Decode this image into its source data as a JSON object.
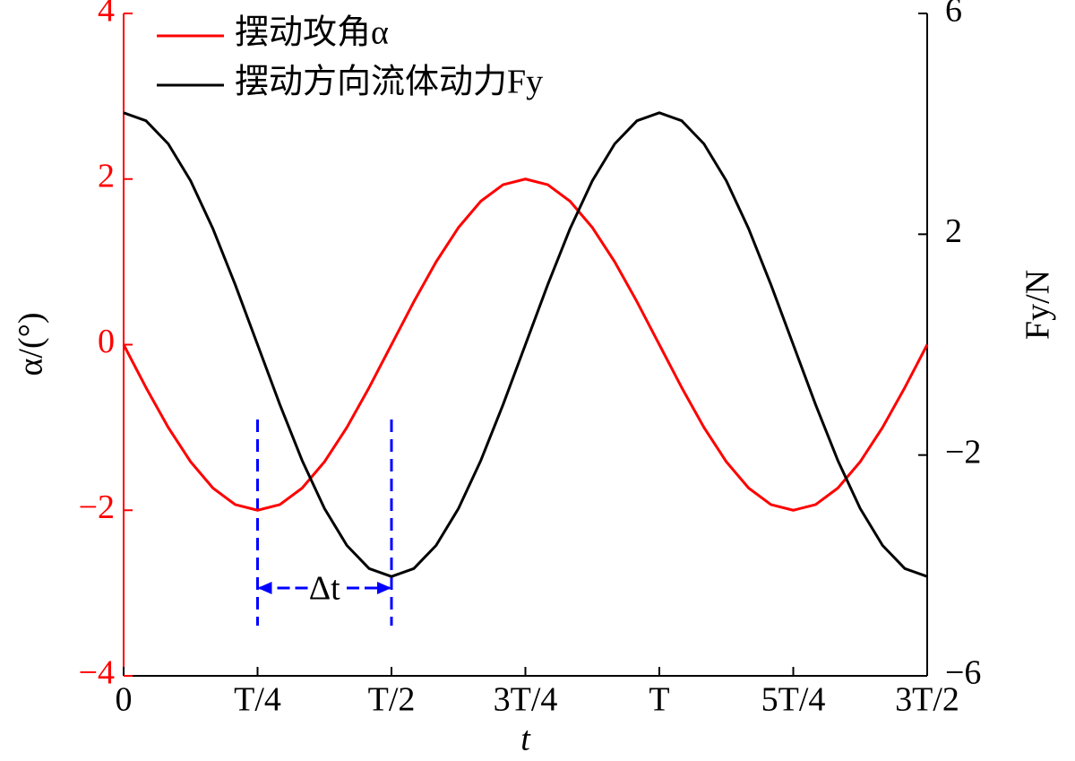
{
  "chart_data": {
    "type": "line",
    "x": [
      0,
      0.0417,
      0.0833,
      0.125,
      0.1667,
      0.2083,
      0.25,
      0.2917,
      0.3333,
      0.375,
      0.4167,
      0.4583,
      0.5,
      0.5417,
      0.5833,
      0.625,
      0.6667,
      0.7083,
      0.75,
      0.7917,
      0.8333,
      0.875,
      0.9167,
      0.9583,
      1,
      1.0417,
      1.0833,
      1.125,
      1.1667,
      1.2083,
      1.25,
      1.2917,
      1.3333,
      1.375,
      1.4167,
      1.4583,
      1.5
    ],
    "series": [
      {
        "name": "摆动攻角α",
        "color": "#ff0000",
        "axis": "y",
        "values": [
          0,
          -0.518,
          -1,
          -1.414,
          -1.732,
          -1.932,
          -2,
          -1.932,
          -1.732,
          -1.414,
          -1,
          -0.518,
          0,
          0.518,
          1,
          1.414,
          1.732,
          1.932,
          2,
          1.932,
          1.732,
          1.414,
          1,
          0.518,
          0,
          -0.518,
          -1,
          -1.414,
          -1.732,
          -1.932,
          -2,
          -1.932,
          -1.732,
          -1.414,
          -1,
          -0.518,
          0
        ]
      },
      {
        "name": "摆动方向流体动力Fy",
        "color": "#000000",
        "axis": "y2",
        "values": [
          4.2,
          4.057,
          3.637,
          2.97,
          2.1,
          1.087,
          0,
          -1.087,
          -2.1,
          -2.97,
          -3.637,
          -4.057,
          -4.2,
          -4.057,
          -3.637,
          -2.97,
          -2.1,
          -1.087,
          0,
          1.087,
          2.1,
          2.97,
          3.637,
          4.057,
          4.2,
          4.057,
          3.637,
          2.97,
          2.1,
          1.087,
          0,
          -1.087,
          -2.1,
          -2.97,
          -3.637,
          -4.057,
          -4.2
        ]
      }
    ],
    "xlabel": "t",
    "ylabel": "α/(°)",
    "y2label": "Fy/N",
    "xlim": [
      0,
      1.5
    ],
    "xticks": [
      0,
      {
        "value": 0.25,
        "label": "T/4"
      },
      {
        "value": 0.5,
        "label": "T/2"
      },
      {
        "value": 0.75,
        "label": "3T/4"
      },
      {
        "value": 1,
        "label": "T"
      },
      {
        "value": 1.25,
        "label": "5T/4"
      },
      {
        "value": 1.5,
        "label": "3T/2"
      }
    ],
    "ylim": [
      -4,
      4
    ],
    "yticks": [
      {
        "value": -4,
        "label": "−4"
      },
      {
        "value": -2,
        "label": "−2"
      },
      0,
      2,
      4
    ],
    "y2lim": [
      -6,
      6
    ],
    "y2ticks": [
      {
        "value": -6,
        "label": "−6"
      },
      {
        "value": -2,
        "label": "−2"
      },
      2,
      6
    ],
    "y_axis_color": "#ff0000",
    "annotation": "Δt",
    "legend": "upper left"
  }
}
